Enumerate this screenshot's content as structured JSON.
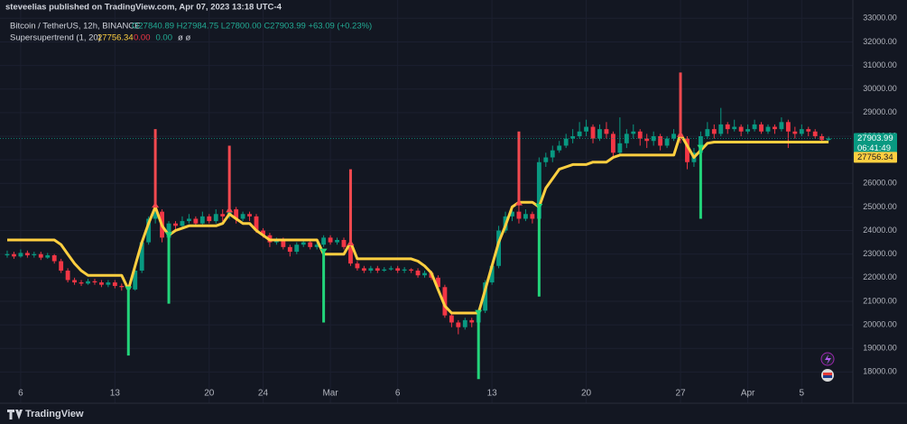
{
  "chart_data": {
    "type": "candlestick",
    "publisher": "steveelias published on TradingView.com, Apr 07, 2023 13:18 UTC-4",
    "title": "Bitcoin / TetherUS, 12h, BINANCE",
    "subtitle": "O27840.89 H27984.75 L27800.00 C27903.99 +63.09 (+0.23%)",
    "indicator": {
      "name": "Supersupertrend (1, 20)",
      "extras": [
        "0.00",
        "0.00",
        "ø ø"
      ],
      "extra_colors": [
        "#f23645",
        "#22ab94",
        "#d1d4dc"
      ]
    },
    "countdown": "06:41:49",
    "brand": "TradingView",
    "up_color": "#089981",
    "down_color": "#f23645",
    "supertrend_color": "#ffcf40",
    "grid": true,
    "xlim": [
      -1.07,
      125.6
    ],
    "ylim": [
      16675,
      33777
    ],
    "xticks": [
      {
        "value": 2,
        "label": "6"
      },
      {
        "value": 16,
        "label": "13"
      },
      {
        "value": 30,
        "label": "20"
      },
      {
        "value": 38,
        "label": "24"
      },
      {
        "value": 48,
        "label": "Mar"
      },
      {
        "value": 58,
        "label": "6"
      },
      {
        "value": 72,
        "label": "13"
      },
      {
        "value": 86,
        "label": "20"
      },
      {
        "value": 100,
        "label": "27"
      },
      {
        "value": 110,
        "label": "Apr"
      },
      {
        "value": 118,
        "label": "5"
      }
    ],
    "yticks": [
      {
        "value": 18000,
        "label": "18000.00"
      },
      {
        "value": 19000,
        "label": "19000.00"
      },
      {
        "value": 20000,
        "label": "20000.00"
      },
      {
        "value": 21000,
        "label": "21000.00"
      },
      {
        "value": 22000,
        "label": "22000.00"
      },
      {
        "value": 23000,
        "label": "23000.00"
      },
      {
        "value": 24000,
        "label": "24000.00"
      },
      {
        "value": 25000,
        "label": "25000.00"
      },
      {
        "value": 26000,
        "label": "26000.00"
      },
      {
        "value": 27000,
        "label": "27000.00"
      },
      {
        "value": 28000,
        "label": "28000.00"
      },
      {
        "value": 29000,
        "label": "29000.00"
      },
      {
        "value": 30000,
        "label": "30000.00"
      },
      {
        "value": 31000,
        "label": "31000.00"
      },
      {
        "value": 32000,
        "label": "32000.00"
      },
      {
        "value": 33000,
        "label": "33000.00"
      }
    ],
    "open": [
      22950,
      23000,
      22900,
      23050,
      22950,
      23000,
      22850,
      22950,
      22700,
      22300,
      21900,
      21800,
      21750,
      21850,
      21800,
      21700,
      21800,
      21650,
      21600,
      21500,
      22300,
      23500,
      24500,
      24800,
      23700,
      24300,
      24200,
      24400,
      24500,
      24300,
      24600,
      24400,
      24700,
      24600,
      24900,
      24500,
      24700,
      24600,
      24000,
      23800,
      23500,
      23600,
      23300,
      23100,
      23400,
      23500,
      23300,
      23400,
      23700,
      23500,
      23600,
      23300,
      22600,
      22400,
      22300,
      22400,
      22300,
      22350,
      22400,
      22300,
      22350,
      22300,
      22100,
      22200,
      22000,
      21600,
      20400,
      20100,
      19900,
      20200,
      20100,
      20600,
      21800,
      22500,
      24000,
      24600,
      24800,
      24500,
      24700,
      24500,
      26900,
      27100,
      27400,
      27600,
      27900,
      28000,
      28200,
      28400,
      27900,
      28300,
      28100,
      27300,
      27700,
      28100,
      28200,
      27900,
      27800,
      28000,
      27600,
      27900,
      28100,
      27900,
      26900,
      27300,
      28000,
      28300,
      28100,
      28500,
      28300,
      28400,
      28200,
      28300,
      28500,
      28200,
      28400,
      28300,
      28600,
      28200,
      28100,
      28300,
      28200,
      28000,
      27840.89
    ],
    "high": [
      23150,
      23100,
      23200,
      23150,
      23100,
      23100,
      23050,
      23000,
      22800,
      22400,
      22000,
      21900,
      21950,
      21950,
      21900,
      21900,
      21900,
      21750,
      21700,
      22400,
      23600,
      24600,
      25100,
      24900,
      24400,
      24400,
      24600,
      24700,
      24600,
      24800,
      24700,
      24900,
      24900,
      25200,
      25000,
      24800,
      24800,
      24700,
      24100,
      23900,
      23700,
      23700,
      23400,
      23500,
      23600,
      23600,
      23500,
      23800,
      23800,
      23700,
      23700,
      23400,
      22700,
      22500,
      22500,
      22500,
      22450,
      22500,
      22500,
      22450,
      22400,
      22400,
      22300,
      22300,
      22100,
      21700,
      20500,
      20200,
      20300,
      20300,
      20700,
      21900,
      22600,
      24200,
      24800,
      25000,
      25200,
      24900,
      24800,
      27100,
      27300,
      27600,
      27800,
      28100,
      28300,
      28600,
      28700,
      28500,
      28500,
      28600,
      28200,
      28800,
      28300,
      28500,
      28300,
      28100,
      28200,
      28100,
      28000,
      28300,
      28400,
      28000,
      27500,
      28200,
      28600,
      28500,
      29200,
      28600,
      28700,
      28500,
      28500,
      28700,
      28600,
      28500,
      28500,
      28800,
      28700,
      28400,
      28500,
      28400,
      28300,
      28100,
      27984.75
    ],
    "low": [
      22850,
      22800,
      22850,
      22850,
      22850,
      22750,
      22800,
      22600,
      22200,
      21800,
      21700,
      21650,
      21700,
      21700,
      21600,
      21600,
      21550,
      21450,
      21350,
      21450,
      22200,
      23400,
      24300,
      23500,
      23600,
      24000,
      24100,
      24300,
      24200,
      24200,
      24300,
      24300,
      24400,
      24500,
      24300,
      24400,
      24400,
      23900,
      23700,
      23300,
      23400,
      23200,
      22900,
      23000,
      23300,
      23200,
      23200,
      23300,
      23400,
      23400,
      23200,
      22500,
      22300,
      22200,
      22200,
      22200,
      22250,
      22300,
      22200,
      22200,
      22200,
      22000,
      22000,
      21900,
      21500,
      20300,
      19900,
      19600,
      19800,
      19900,
      20000,
      20500,
      21700,
      22400,
      23900,
      24400,
      24300,
      24400,
      24300,
      24400,
      26700,
      26900,
      27300,
      27500,
      27700,
      27900,
      28000,
      27700,
      27800,
      27900,
      27100,
      27200,
      27500,
      27900,
      27600,
      27500,
      27600,
      27400,
      27500,
      27800,
      27700,
      26600,
      26700,
      27200,
      27900,
      27900,
      28000,
      28100,
      28200,
      28000,
      28100,
      28200,
      28100,
      28100,
      28100,
      28200,
      27500,
      27900,
      28000,
      28000,
      27900,
      27700,
      27800
    ],
    "close": [
      23000,
      22900,
      23050,
      22950,
      23000,
      22850,
      22950,
      22700,
      22300,
      21900,
      21800,
      21750,
      21850,
      21800,
      21700,
      21800,
      21650,
      21600,
      21500,
      22300,
      23500,
      24500,
      24800,
      23700,
      24300,
      24200,
      24400,
      24500,
      24300,
      24600,
      24400,
      24700,
      24600,
      24900,
      24500,
      24700,
      24600,
      24000,
      23800,
      23500,
      23600,
      23300,
      23100,
      23400,
      23500,
      23300,
      23400,
      23700,
      23500,
      23600,
      23300,
      22600,
      22400,
      22300,
      22400,
      22300,
      22350,
      22400,
      22300,
      22350,
      22300,
      22100,
      22200,
      22000,
      21600,
      20400,
      20100,
      19900,
      20200,
      20100,
      20600,
      21800,
      22500,
      24000,
      24600,
      24800,
      24500,
      24700,
      24500,
      26900,
      27100,
      27400,
      27600,
      27900,
      28000,
      28200,
      28400,
      27900,
      28300,
      28100,
      27300,
      27700,
      28100,
      28200,
      27900,
      27800,
      28000,
      27600,
      27900,
      28100,
      27900,
      26900,
      27300,
      28000,
      28300,
      28100,
      28500,
      28300,
      28400,
      28200,
      28300,
      28500,
      28200,
      28400,
      28300,
      28600,
      28200,
      28100,
      28300,
      28200,
      28000,
      27840.89,
      27903.99
    ],
    "supertrend": [
      23600,
      23600,
      23600,
      23600,
      23600,
      23600,
      23600,
      23600,
      23400,
      23000,
      22600,
      22300,
      22100,
      22100,
      22100,
      22100,
      22100,
      22100,
      21500,
      22500,
      23500,
      24300,
      25000,
      24200,
      23800,
      24000,
      24100,
      24200,
      24200,
      24200,
      24200,
      24200,
      24300,
      24700,
      24500,
      24300,
      24300,
      24000,
      23800,
      23600,
      23600,
      23600,
      23600,
      23600,
      23600,
      23600,
      23600,
      23000,
      23000,
      23000,
      23000,
      23500,
      22800,
      22800,
      22800,
      22800,
      22800,
      22800,
      22800,
      22800,
      22800,
      22700,
      22500,
      22200,
      21500,
      20800,
      20500,
      20500,
      20500,
      20500,
      20500,
      21500,
      22500,
      23500,
      24200,
      25000,
      25200,
      25200,
      25200,
      25000,
      25800,
      26200,
      26600,
      26700,
      26800,
      26800,
      26800,
      26900,
      26900,
      26900,
      27100,
      27200,
      27200,
      27200,
      27200,
      27200,
      27200,
      27200,
      27200,
      27200,
      28100,
      27600,
      27100,
      27400,
      27700,
      27750,
      27750,
      27750,
      27750,
      27750,
      27750,
      27750,
      27750,
      27750,
      27750,
      27750,
      27750,
      27750,
      27750,
      27750,
      27750,
      27750,
      27756.34
    ],
    "signals": [
      {
        "side": "buy",
        "index": 18,
        "from": 21400,
        "to": 18700
      },
      {
        "side": "sell",
        "index": 22,
        "from": 25200,
        "to": 28300
      },
      {
        "side": "buy",
        "index": 24,
        "from": 23700,
        "to": 20900
      },
      {
        "side": "sell",
        "index": 33,
        "from": 25000,
        "to": 27600
      },
      {
        "side": "buy",
        "index": 47,
        "from": 23000,
        "to": 20100
      },
      {
        "side": "sell",
        "index": 51,
        "from": 23600,
        "to": 26600
      },
      {
        "side": "buy",
        "index": 70,
        "from": 20400,
        "to": 17700
      },
      {
        "side": "sell",
        "index": 76,
        "from": 25300,
        "to": 28200
      },
      {
        "side": "buy",
        "index": 79,
        "from": 24900,
        "to": 21200
      },
      {
        "side": "sell",
        "index": 100,
        "from": 28200,
        "to": 30700
      },
      {
        "side": "buy",
        "index": 103,
        "from": 27400,
        "to": 24500
      }
    ],
    "buy_color": "#22d47a",
    "sell_color": "#f2494f"
  }
}
